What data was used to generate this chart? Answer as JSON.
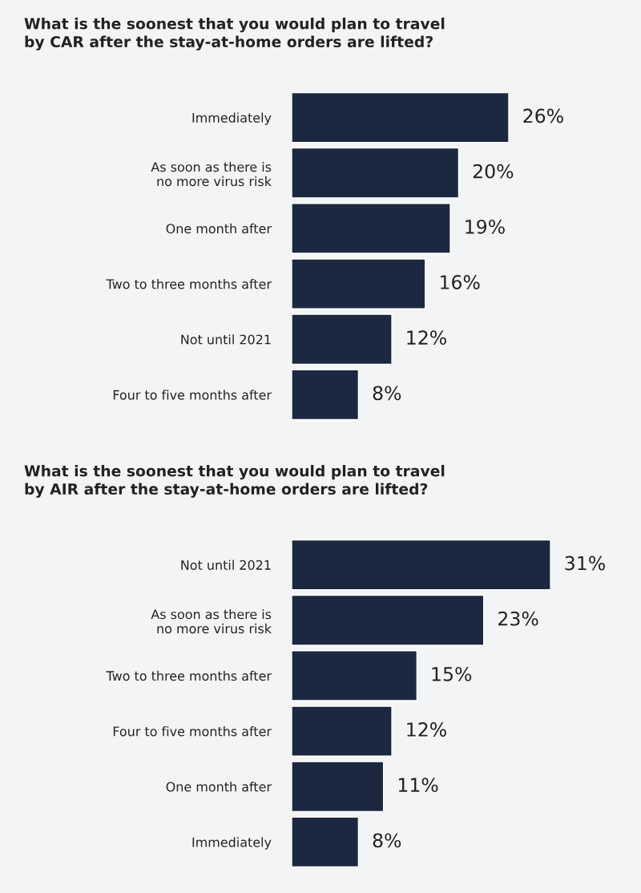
{
  "chart_data": [
    {
      "type": "bar",
      "orientation": "horizontal",
      "title": "What is the soonest that you would plan to travel\nby CAR after the stay-at-home orders are lifted?",
      "categories": [
        "Immediately",
        "As soon as there is\nno more virus risk",
        "One month after",
        "Two to three months after",
        "Not until 2021",
        "Four to five months after"
      ],
      "values": [
        26,
        20,
        19,
        16,
        12,
        8
      ],
      "value_labels": [
        "26%",
        "20%",
        "19%",
        "16%",
        "12%",
        "8%"
      ],
      "color": "#1c2840",
      "tick_labels": "y",
      "grid": false,
      "legend": false
    },
    {
      "type": "bar",
      "orientation": "horizontal",
      "title": "What is the soonest that you would plan to travel\nby AIR after the stay-at-home orders are lifted?",
      "categories": [
        "Not until 2021",
        "As soon as there is\nno more virus risk",
        "Two to three months after",
        "Four to five months after",
        "One month after",
        "Immediately"
      ],
      "values": [
        31,
        23,
        15,
        12,
        11,
        8
      ],
      "value_labels": [
        "31%",
        "23%",
        "15%",
        "12%",
        "11%",
        "8%"
      ],
      "color": "#1c2840",
      "tick_labels": "y",
      "grid": false,
      "legend": false
    }
  ]
}
